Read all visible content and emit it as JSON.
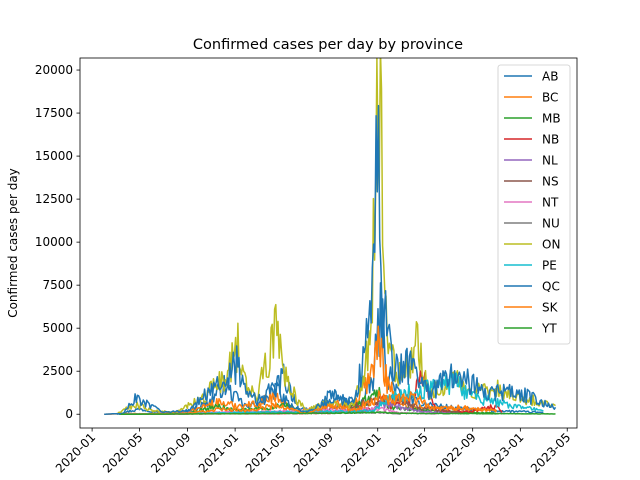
{
  "chart_data": {
    "type": "line",
    "title": "Confirmed cases per day by province",
    "xlabel": "",
    "ylabel": "Confirmed cases per day",
    "x_ticks": [
      "2020-01",
      "2020-05",
      "2020-09",
      "2021-01",
      "2021-05",
      "2021-09",
      "2022-01",
      "2022-05",
      "2022-09",
      "2023-01",
      "2023-05"
    ],
    "y_ticks": [
      "0",
      "2500",
      "5000",
      "7500",
      "10000",
      "12500",
      "15000",
      "17500",
      "20000"
    ],
    "xlim": [
      "2019-12-01",
      "2023-05-26"
    ],
    "ylim": [
      -800,
      20700
    ],
    "legend_position": "top-right",
    "series": [
      {
        "name": "AB",
        "color": "#1f77b4",
        "points": [
          [
            "2020-03-05",
            0
          ],
          [
            "2020-04-10",
            200
          ],
          [
            "2020-05-01",
            300
          ],
          [
            "2020-07-01",
            100
          ],
          [
            "2020-09-01",
            150
          ],
          [
            "2020-11-01",
            800
          ],
          [
            "2020-12-01",
            1700
          ],
          [
            "2021-01-01",
            1000
          ],
          [
            "2021-02-01",
            400
          ],
          [
            "2021-04-01",
            1000
          ],
          [
            "2021-05-05",
            2200
          ],
          [
            "2021-06-15",
            300
          ],
          [
            "2021-08-01",
            200
          ],
          [
            "2021-09-01",
            1200
          ],
          [
            "2021-10-01",
            900
          ],
          [
            "2021-11-15",
            400
          ],
          [
            "2021-12-20",
            2000
          ],
          [
            "2022-01-08",
            6000
          ],
          [
            "2022-01-25",
            2500
          ],
          [
            "2022-03-01",
            900
          ],
          [
            "2022-05-01",
            600
          ],
          [
            "2022-08-01",
            300
          ],
          [
            "2022-11-01",
            200
          ],
          [
            "2023-03-01",
            100
          ]
        ]
      },
      {
        "name": "BC",
        "color": "#ff7f0e",
        "points": [
          [
            "2020-02-01",
            0
          ],
          [
            "2020-04-01",
            40
          ],
          [
            "2020-06-01",
            20
          ],
          [
            "2020-09-01",
            100
          ],
          [
            "2020-11-15",
            700
          ],
          [
            "2021-01-01",
            500
          ],
          [
            "2021-03-01",
            600
          ],
          [
            "2021-04-10",
            1100
          ],
          [
            "2021-06-01",
            200
          ],
          [
            "2021-08-01",
            300
          ],
          [
            "2021-09-15",
            700
          ],
          [
            "2021-11-01",
            400
          ],
          [
            "2021-12-25",
            3000
          ],
          [
            "2022-01-05",
            4200
          ],
          [
            "2022-01-25",
            2000
          ],
          [
            "2022-03-01",
            500
          ],
          [
            "2022-05-01",
            400
          ],
          [
            "2022-08-01",
            300
          ],
          [
            "2022-11-01",
            200
          ]
        ]
      },
      {
        "name": "MB",
        "color": "#2ca02c",
        "points": [
          [
            "2020-03-10",
            0
          ],
          [
            "2020-09-01",
            50
          ],
          [
            "2020-11-15",
            450
          ],
          [
            "2021-01-10",
            200
          ],
          [
            "2021-05-20",
            500
          ],
          [
            "2021-07-01",
            50
          ],
          [
            "2021-10-01",
            100
          ],
          [
            "2022-01-05",
            1200
          ],
          [
            "2022-02-01",
            400
          ],
          [
            "2022-05-01",
            200
          ],
          [
            "2022-08-01",
            100
          ],
          [
            "2022-11-01",
            60
          ]
        ]
      },
      {
        "name": "NB",
        "color": "#d62728",
        "points": [
          [
            "2020-03-15",
            0
          ],
          [
            "2021-09-01",
            50
          ],
          [
            "2021-12-20",
            300
          ],
          [
            "2022-01-10",
            800
          ],
          [
            "2022-02-01",
            500
          ],
          [
            "2022-04-01",
            1000
          ],
          [
            "2022-04-20",
            2700
          ],
          [
            "2022-06-01",
            200
          ],
          [
            "2022-09-01",
            150
          ],
          [
            "2022-11-01",
            500
          ],
          [
            "2022-11-15",
            100
          ]
        ]
      },
      {
        "name": "NL",
        "color": "#9467bd",
        "points": [
          [
            "2020-03-15",
            0
          ],
          [
            "2021-12-15",
            200
          ],
          [
            "2022-01-10",
            600
          ],
          [
            "2022-03-01",
            400
          ],
          [
            "2022-05-01",
            150
          ],
          [
            "2022-08-01",
            50
          ]
        ]
      },
      {
        "name": "NS",
        "color": "#8c564b",
        "points": [
          [
            "2020-03-15",
            0
          ],
          [
            "2021-05-01",
            150
          ],
          [
            "2021-06-01",
            20
          ],
          [
            "2021-12-20",
            700
          ],
          [
            "2022-01-10",
            1000
          ],
          [
            "2022-03-15",
            600
          ],
          [
            "2022-05-01",
            300
          ],
          [
            "2022-08-01",
            100
          ]
        ]
      },
      {
        "name": "NT",
        "color": "#e377c2",
        "points": [
          [
            "2020-03-15",
            0
          ],
          [
            "2022-01-10",
            300
          ],
          [
            "2022-03-01",
            80
          ],
          [
            "2022-06-01",
            20
          ]
        ]
      },
      {
        "name": "NU",
        "color": "#7f7f7f",
        "points": [
          [
            "2020-03-15",
            0
          ],
          [
            "2022-01-10",
            100
          ],
          [
            "2022-03-01",
            20
          ]
        ]
      },
      {
        "name": "ON",
        "color": "#bcbd22",
        "points": [
          [
            "2020-03-01",
            0
          ],
          [
            "2020-04-25",
            600
          ],
          [
            "2020-06-01",
            200
          ],
          [
            "2020-08-01",
            100
          ],
          [
            "2020-10-01",
            800
          ],
          [
            "2020-12-01",
            2000
          ],
          [
            "2021-01-08",
            4100
          ],
          [
            "2021-02-01",
            1200
          ],
          [
            "2021-03-01",
            1200
          ],
          [
            "2021-04-15",
            5000
          ],
          [
            "2021-05-20",
            1500
          ],
          [
            "2021-07-01",
            200
          ],
          [
            "2021-09-01",
            700
          ],
          [
            "2021-11-01",
            500
          ],
          [
            "2021-12-15",
            4000
          ],
          [
            "2022-01-02",
            19500
          ],
          [
            "2022-01-25",
            4000
          ],
          [
            "2022-03-01",
            2000
          ],
          [
            "2022-04-10",
            4200
          ],
          [
            "2022-05-15",
            1200
          ],
          [
            "2022-07-15",
            2000
          ],
          [
            "2022-09-01",
            1300
          ],
          [
            "2022-11-01",
            1500
          ],
          [
            "2023-01-01",
            1000
          ],
          [
            "2023-04-01",
            500
          ]
        ]
      },
      {
        "name": "PE",
        "color": "#17becf",
        "points": [
          [
            "2020-03-15",
            0
          ],
          [
            "2021-12-20",
            200
          ],
          [
            "2022-01-10",
            600
          ],
          [
            "2022-03-01",
            1200
          ],
          [
            "2022-06-01",
            1500
          ],
          [
            "2022-07-15",
            2000
          ],
          [
            "2022-09-01",
            1000
          ],
          [
            "2022-11-01",
            700
          ],
          [
            "2023-01-01",
            400
          ],
          [
            "2023-03-01",
            200
          ]
        ]
      },
      {
        "name": "QC",
        "color": "#1f77b4",
        "points": [
          [
            "2020-02-01",
            0
          ],
          [
            "2020-03-20",
            50
          ],
          [
            "2020-04-20",
            900
          ],
          [
            "2020-05-20",
            600
          ],
          [
            "2020-07-01",
            100
          ],
          [
            "2020-09-01",
            200
          ],
          [
            "2020-10-15",
            1100
          ],
          [
            "2020-12-01",
            1800
          ],
          [
            "2021-01-05",
            2900
          ],
          [
            "2021-02-01",
            1100
          ],
          [
            "2021-03-01",
            800
          ],
          [
            "2021-04-15",
            1600
          ],
          [
            "2021-05-20",
            500
          ],
          [
            "2021-07-01",
            100
          ],
          [
            "2021-09-15",
            900
          ],
          [
            "2021-11-01",
            700
          ],
          [
            "2021-12-15",
            5500
          ],
          [
            "2021-12-31",
            18700
          ],
          [
            "2022-01-15",
            6000
          ],
          [
            "2022-02-15",
            2500
          ],
          [
            "2022-04-01",
            3000
          ],
          [
            "2022-05-15",
            1300
          ],
          [
            "2022-07-20",
            2400
          ],
          [
            "2022-09-15",
            1500
          ],
          [
            "2022-11-01",
            1300
          ],
          [
            "2023-01-01",
            1200
          ],
          [
            "2023-04-01",
            400
          ]
        ]
      },
      {
        "name": "SK",
        "color": "#ff7f0e",
        "points": [
          [
            "2020-03-15",
            0
          ],
          [
            "2020-09-01",
            50
          ],
          [
            "2020-12-01",
            300
          ],
          [
            "2021-02-01",
            200
          ],
          [
            "2021-04-15",
            500
          ],
          [
            "2021-07-01",
            50
          ],
          [
            "2021-09-15",
            500
          ],
          [
            "2021-11-01",
            200
          ],
          [
            "2022-01-10",
            1100
          ],
          [
            "2022-02-01",
            800
          ],
          [
            "2022-04-01",
            1000
          ],
          [
            "2022-06-01",
            300
          ],
          [
            "2022-08-01",
            400
          ],
          [
            "2022-11-01",
            200
          ]
        ]
      },
      {
        "name": "YT",
        "color": "#2ca02c",
        "points": [
          [
            "2020-03-15",
            0
          ],
          [
            "2021-06-15",
            50
          ],
          [
            "2022-01-10",
            100
          ],
          [
            "2022-03-01",
            50
          ],
          [
            "2023-04-01",
            20
          ]
        ]
      }
    ]
  }
}
